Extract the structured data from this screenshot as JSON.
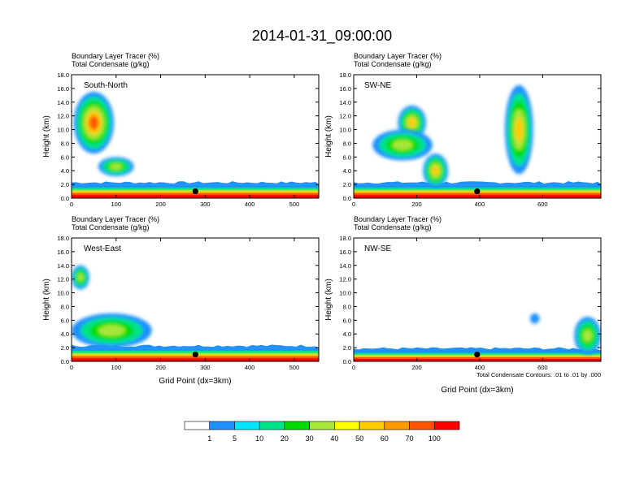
{
  "figure": {
    "title": "2014-01-31_09:00:00",
    "contour_note": "Total Condensate Contours: .01 to .01 by .000"
  },
  "chart_data": [
    {
      "type": "heatmap",
      "panel_label": "South-North",
      "title_line1": "Boundary Layer Tracer   (%)",
      "title_line2": "Total Condensate   (g/kg)",
      "xlabel": "",
      "ylabel": "Height (km)",
      "xlim": [
        0,
        555
      ],
      "ylim": [
        0,
        18
      ],
      "xticks": [
        0,
        100,
        200,
        300,
        400,
        500
      ],
      "yticks": [
        0,
        2,
        4,
        6,
        8,
        10,
        12,
        14,
        16,
        18
      ],
      "ytick_labels": [
        "0.0",
        "2.0",
        "4.0",
        "6.0",
        "8.0",
        "10.0",
        "12.0",
        "14.0",
        "16.0",
        "18.0"
      ],
      "marker_point": {
        "x": 278,
        "y": 1.0
      },
      "tracer_boundary_layer_top_km": 2.0,
      "tracer_plumes": [
        {
          "x0": 5,
          "x1": 95,
          "y0": 6.5,
          "y1": 15.5,
          "peak_pct": 70
        },
        {
          "x0": 60,
          "x1": 140,
          "y0": 3.2,
          "y1": 6.0,
          "peak_pct": 35
        }
      ]
    },
    {
      "type": "heatmap",
      "panel_label": "SW-NE",
      "title_line1": "Boundary Layer Tracer   (%)",
      "title_line2": "Total Condensate   (g/kg)",
      "xlabel": "",
      "ylabel": "Height (km)",
      "xlim": [
        0,
        785
      ],
      "ylim": [
        0,
        18
      ],
      "xticks": [
        0,
        200,
        400,
        600
      ],
      "yticks": [
        0,
        2,
        4,
        6,
        8,
        10,
        12,
        14,
        16,
        18
      ],
      "ytick_labels": [
        "0.0",
        "2.0",
        "4.0",
        "6.0",
        "8.0",
        "10.0",
        "12.0",
        "14.0",
        "16.0",
        "18.0"
      ],
      "marker_point": {
        "x": 392,
        "y": 1.0
      },
      "tracer_boundary_layer_top_km": 2.0,
      "tracer_plumes": [
        {
          "x0": 140,
          "x1": 230,
          "y0": 8.5,
          "y1": 13.5,
          "peak_pct": 60
        },
        {
          "x0": 60,
          "x1": 250,
          "y0": 5.5,
          "y1": 10.0,
          "peak_pct": 40
        },
        {
          "x0": 220,
          "x1": 300,
          "y0": 1.5,
          "y1": 6.5,
          "peak_pct": 60
        },
        {
          "x0": 480,
          "x1": 570,
          "y0": 3.5,
          "y1": 16.5,
          "peak_pct": 60
        }
      ]
    },
    {
      "type": "heatmap",
      "panel_label": "West-East",
      "title_line1": "Boundary Layer Tracer   (%)",
      "title_line2": "Total Condensate   (g/kg)",
      "xlabel": "Grid Point (dx=3km)",
      "ylabel": "Height (km)",
      "xlim": [
        0,
        555
      ],
      "ylim": [
        0,
        18
      ],
      "xticks": [
        0,
        100,
        200,
        300,
        400,
        500
      ],
      "yticks": [
        0,
        2,
        4,
        6,
        8,
        10,
        12,
        14,
        16,
        18
      ],
      "ytick_labels": [
        "0.0",
        "2.0",
        "4.0",
        "6.0",
        "8.0",
        "10.0",
        "12.0",
        "14.0",
        "16.0",
        "18.0"
      ],
      "marker_point": {
        "x": 278,
        "y": 1.0
      },
      "tracer_boundary_layer_top_km": 2.0,
      "tracer_plumes": [
        {
          "x0": 0,
          "x1": 40,
          "y0": 10.5,
          "y1": 14.0,
          "peak_pct": 40
        },
        {
          "x0": 0,
          "x1": 180,
          "y0": 2.0,
          "y1": 7.0,
          "peak_pct": 30
        }
      ]
    },
    {
      "type": "heatmap",
      "panel_label": "NW-SE",
      "title_line1": "Boundary Layer Tracer   (%)",
      "title_line2": "Total Condensate   (g/kg)",
      "xlabel": "Grid Point (dx=3km)",
      "ylabel": "Height (km)",
      "xlim": [
        0,
        785
      ],
      "ylim": [
        0,
        18
      ],
      "xticks": [
        0,
        200,
        400,
        600
      ],
      "yticks": [
        0,
        2,
        4,
        6,
        8,
        10,
        12,
        14,
        16,
        18
      ],
      "ytick_labels": [
        "0.0",
        "2.0",
        "4.0",
        "6.0",
        "8.0",
        "10.0",
        "12.0",
        "14.0",
        "16.0",
        "18.0"
      ],
      "marker_point": {
        "x": 392,
        "y": 1.0
      },
      "tracer_boundary_layer_top_km": 1.6,
      "tracer_plumes": [
        {
          "x0": 560,
          "x1": 590,
          "y0": 5.5,
          "y1": 7.0,
          "peak_pct": 5
        },
        {
          "x0": 700,
          "x1": 785,
          "y0": 1.0,
          "y1": 6.5,
          "peak_pct": 30
        }
      ]
    }
  ],
  "colorbar": {
    "labels": [
      "1",
      "5",
      "10",
      "20",
      "30",
      "40",
      "50",
      "60",
      "70",
      "100"
    ],
    "colors": [
      "#ffffff",
      "#1e90ff",
      "#00e5ff",
      "#00e38a",
      "#00dc00",
      "#a8e63b",
      "#ffff00",
      "#ffcc00",
      "#ff9900",
      "#ff5500",
      "#ff0000"
    ]
  }
}
